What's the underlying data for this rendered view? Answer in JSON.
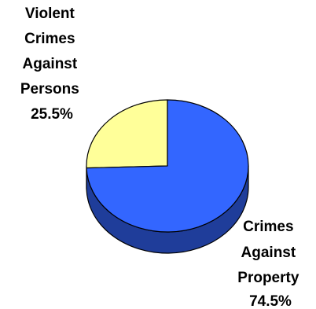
{
  "chart_data": {
    "type": "pie",
    "style": "3d",
    "categories": [
      "Violent Crimes Against Persons",
      "Crimes Against Property"
    ],
    "values": [
      25.5,
      74.5
    ],
    "units": "%",
    "data_labels": [
      {
        "lines": [
          "Violent",
          "Crimes",
          "Against",
          "Persons",
          "25.5%"
        ]
      },
      {
        "lines": [
          "Crimes",
          "Against",
          "Property",
          "74.5%"
        ]
      }
    ],
    "colors": [
      "#ffff99",
      "#3366ff"
    ],
    "side_colors": [
      "#c8c870",
      "#1f3d9a"
    ],
    "legend": "none",
    "title": ""
  }
}
